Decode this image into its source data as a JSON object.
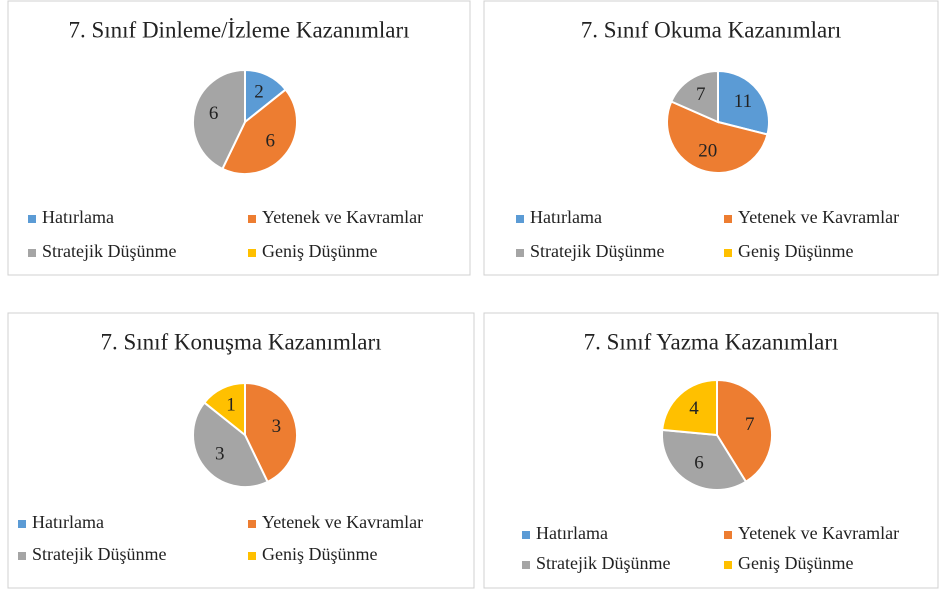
{
  "chart_data": [
    {
      "type": "pie",
      "title": "7. Sınıf Dinleme/İzleme Kazanımları",
      "categories": [
        "Hatırlama",
        "Yetenek ve Kavramlar",
        "Stratejik Düşünme",
        "Geniş Düşünme"
      ],
      "values": [
        2,
        6,
        6,
        0
      ],
      "colors": [
        "#5b9bd5",
        "#ed7d31",
        "#a5a5a5",
        "#ffc000"
      ]
    },
    {
      "type": "pie",
      "title": "7. Sınıf Okuma Kazanımları",
      "categories": [
        "Hatırlama",
        "Yetenek ve Kavramlar",
        "Stratejik Düşünme",
        "Geniş Düşünme"
      ],
      "values": [
        11,
        20,
        7,
        0
      ],
      "colors": [
        "#5b9bd5",
        "#ed7d31",
        "#a5a5a5",
        "#ffc000"
      ]
    },
    {
      "type": "pie",
      "title": "7. Sınıf Konuşma Kazanımları",
      "categories": [
        "Hatırlama",
        "Yetenek ve Kavramlar",
        "Stratejik Düşünme",
        "Geniş Düşünme"
      ],
      "values": [
        0,
        3,
        3,
        1
      ],
      "colors": [
        "#5b9bd5",
        "#ed7d31",
        "#a5a5a5",
        "#ffc000"
      ]
    },
    {
      "type": "pie",
      "title": "7. Sınıf Yazma Kazanımları",
      "categories": [
        "Hatırlama",
        "Yetenek ve Kavramlar",
        "Stratejik Düşünme",
        "Geniş Düşünme"
      ],
      "values": [
        0,
        7,
        6,
        4
      ],
      "colors": [
        "#5b9bd5",
        "#ed7d31",
        "#a5a5a5",
        "#ffc000"
      ]
    }
  ]
}
